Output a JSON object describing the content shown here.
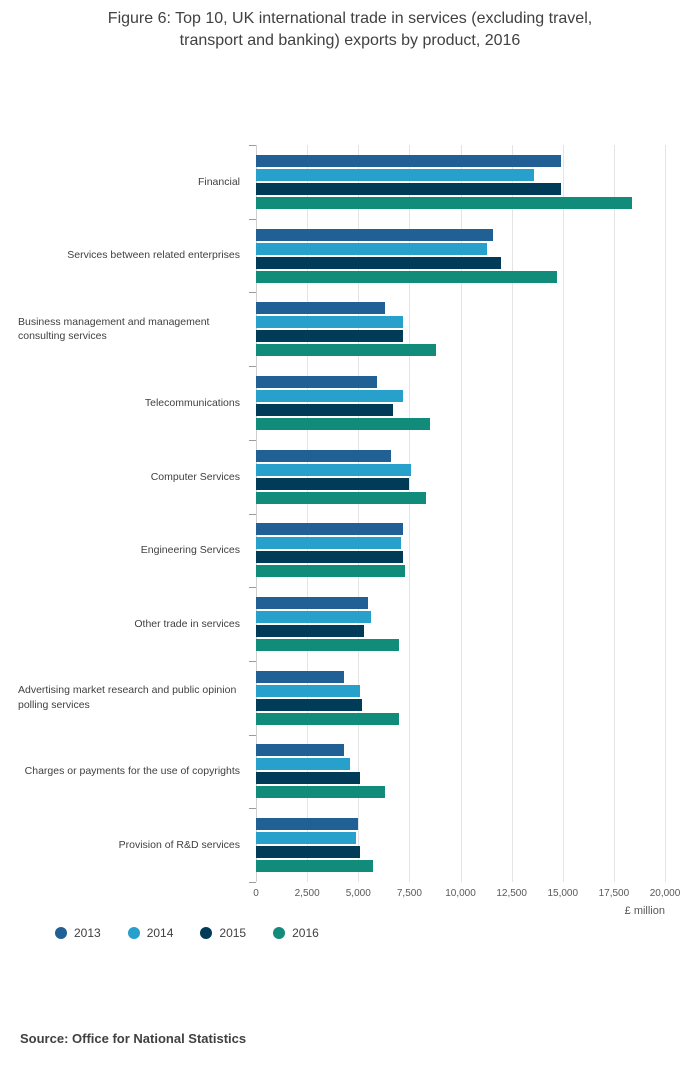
{
  "page": {
    "title": "Figure 6: Top 10, UK international trade in services (excluding travel,\ntransport and banking) exports by product, 2016",
    "source": "Source: Office for National Statistics"
  },
  "chart_data": {
    "type": "bar",
    "orientation": "horizontal",
    "title": "Figure 6: Top 10, UK international trade in services (excluding travel, transport and banking) exports by product, 2016",
    "xlabel": "£ million",
    "ylabel": "",
    "xlim": [
      0,
      20000
    ],
    "xticks": [
      0,
      2500,
      5000,
      7500,
      10000,
      12500,
      15000,
      17500,
      20000
    ],
    "xtick_labels": [
      "0",
      "2,500",
      "5,000",
      "7,500",
      "10,000",
      "12,500",
      "15,000",
      "17,500",
      "20,000"
    ],
    "grid": true,
    "legend_position": "bottom-left",
    "categories": [
      "Financial",
      "Services between related enterprises",
      "Business management and management consulting services",
      "Telecommunications",
      "Computer Services",
      "Engineering Services",
      "Other trade in services",
      "Advertising market research and public opinion polling services",
      "Charges or payments for the use of copyrights",
      "Provision of R&D services"
    ],
    "series": [
      {
        "name": "2013",
        "color": "#206095",
        "values": [
          14900,
          11600,
          6300,
          5900,
          6600,
          7200,
          5500,
          4300,
          4300,
          5000
        ]
      },
      {
        "name": "2014",
        "color": "#27a0cc",
        "values": [
          13600,
          11300,
          7200,
          7200,
          7600,
          7100,
          5600,
          5100,
          4600,
          4900
        ]
      },
      {
        "name": "2015",
        "color": "#003c57",
        "values": [
          14900,
          12000,
          7200,
          6700,
          7500,
          7200,
          5300,
          5200,
          5100,
          5100
        ]
      },
      {
        "name": "2016",
        "color": "#118c7b",
        "values": [
          18400,
          14700,
          8800,
          8500,
          8300,
          7300,
          7000,
          7000,
          6300,
          5700
        ]
      }
    ]
  }
}
